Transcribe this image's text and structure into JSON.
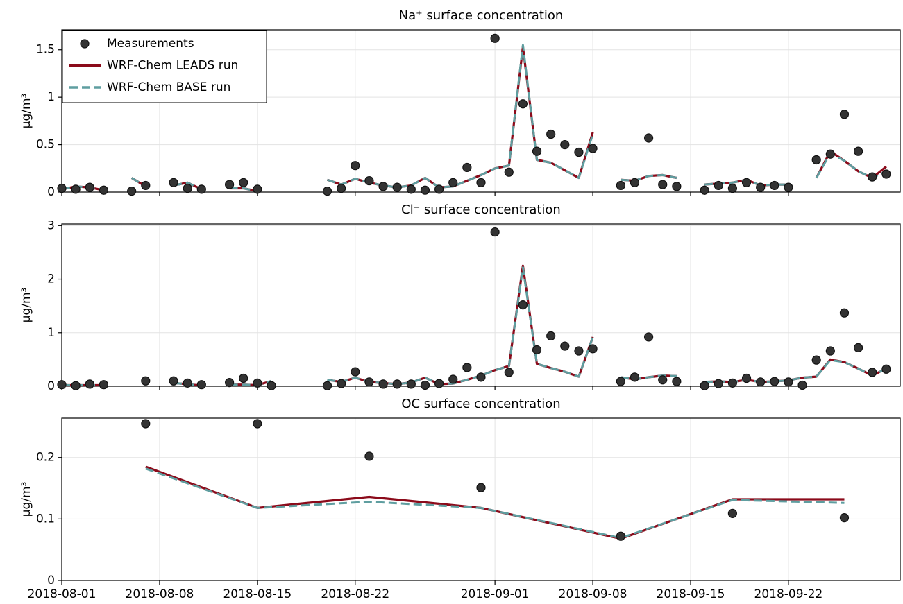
{
  "chart_data": [
    {
      "type": "line",
      "title": "Na⁺ surface concentration",
      "ylabel": "µg/m³",
      "xlim": [
        "2018-08-01",
        "2018-09-30"
      ],
      "ylim": [
        0,
        1.71
      ],
      "yticks": [
        0,
        0.5,
        1,
        1.5
      ],
      "grid": true,
      "legend": "upper left",
      "x": [
        "2018-08-01",
        "2018-08-02",
        "2018-08-03",
        "2018-08-04",
        "2018-08-05",
        "2018-08-06",
        "2018-08-07",
        "2018-08-08",
        "2018-08-09",
        "2018-08-10",
        "2018-08-11",
        "2018-08-12",
        "2018-08-13",
        "2018-08-14",
        "2018-08-15",
        "2018-08-16",
        "2018-08-17",
        "2018-08-18",
        "2018-08-19",
        "2018-08-20",
        "2018-08-21",
        "2018-08-22",
        "2018-08-23",
        "2018-08-24",
        "2018-08-25",
        "2018-08-26",
        "2018-08-27",
        "2018-08-28",
        "2018-08-29",
        "2018-08-30",
        "2018-08-31",
        "2018-09-01",
        "2018-09-02",
        "2018-09-03",
        "2018-09-04",
        "2018-09-05",
        "2018-09-06",
        "2018-09-07",
        "2018-09-08",
        "2018-09-09",
        "2018-09-10",
        "2018-09-11",
        "2018-09-12",
        "2018-09-13",
        "2018-09-14",
        "2018-09-15",
        "2018-09-16",
        "2018-09-17",
        "2018-09-18",
        "2018-09-19",
        "2018-09-20",
        "2018-09-21",
        "2018-09-22",
        "2018-09-23",
        "2018-09-24",
        "2018-09-25",
        "2018-09-26",
        "2018-09-27",
        "2018-09-28",
        "2018-09-29"
      ],
      "series": [
        {
          "name": "Measurements",
          "type": "scatter",
          "color": "#333333",
          "values": [
            0.04,
            0.03,
            0.05,
            0.02,
            null,
            0.01,
            0.07,
            null,
            0.1,
            0.04,
            0.03,
            null,
            0.08,
            0.1,
            0.03,
            null,
            null,
            null,
            null,
            0.01,
            0.04,
            0.28,
            0.12,
            0.06,
            0.05,
            0.03,
            0.02,
            0.03,
            0.1,
            0.26,
            0.1,
            1.62,
            0.21,
            0.93,
            0.43,
            0.61,
            0.5,
            0.42,
            0.46,
            null,
            0.07,
            0.1,
            0.57,
            0.08,
            0.06,
            null,
            0.02,
            0.07,
            0.04,
            0.1,
            0.05,
            0.07,
            0.05,
            null,
            0.34,
            0.4,
            0.82,
            0.43,
            0.16,
            0.19
          ]
        },
        {
          "name": "WRF-Chem LEADS run",
          "type": "line",
          "linestyle": "solid",
          "color": "#8b0a1a",
          "values": [
            0.03,
            0.06,
            0.05,
            0.02,
            null,
            0.15,
            0.06,
            null,
            0.07,
            0.1,
            0.03,
            null,
            0.04,
            0.04,
            0.01,
            null,
            null,
            null,
            null,
            0.13,
            0.08,
            0.14,
            0.1,
            0.07,
            0.05,
            0.07,
            0.15,
            0.05,
            0.06,
            0.12,
            0.18,
            0.25,
            0.28,
            1.53,
            0.34,
            0.31,
            0.23,
            0.15,
            0.63,
            null,
            0.13,
            0.12,
            0.17,
            0.18,
            0.15,
            null,
            0.08,
            0.09,
            0.1,
            0.13,
            0.07,
            0.08,
            0.08,
            null,
            0.15,
            0.43,
            0.33,
            0.22,
            0.15,
            0.27
          ]
        },
        {
          "name": "WRF-Chem BASE run",
          "type": "line",
          "linestyle": "dashed",
          "color": "#5f9ea0",
          "values": [
            0.03,
            0.06,
            0.05,
            0.02,
            null,
            0.15,
            0.06,
            null,
            0.07,
            0.1,
            0.03,
            null,
            0.04,
            0.04,
            0.01,
            null,
            null,
            null,
            null,
            0.13,
            0.08,
            0.14,
            0.1,
            0.07,
            0.05,
            0.07,
            0.15,
            0.05,
            0.06,
            0.12,
            0.18,
            0.25,
            0.28,
            1.55,
            0.34,
            0.31,
            0.23,
            0.15,
            0.61,
            null,
            0.13,
            0.12,
            0.17,
            0.18,
            0.15,
            null,
            0.08,
            0.09,
            0.1,
            0.13,
            0.07,
            0.08,
            0.08,
            null,
            0.15,
            0.41,
            0.33,
            0.22,
            0.15,
            0.22
          ]
        }
      ]
    },
    {
      "type": "line",
      "title": "Cl⁻ surface concentration",
      "ylabel": "µg/m³",
      "xlim": [
        "2018-08-01",
        "2018-09-30"
      ],
      "ylim": [
        0,
        3.03
      ],
      "yticks": [
        0,
        1,
        2,
        3
      ],
      "grid": true,
      "x": [
        "2018-08-01",
        "2018-08-02",
        "2018-08-03",
        "2018-08-04",
        "2018-08-05",
        "2018-08-06",
        "2018-08-07",
        "2018-08-08",
        "2018-08-09",
        "2018-08-10",
        "2018-08-11",
        "2018-08-12",
        "2018-08-13",
        "2018-08-14",
        "2018-08-15",
        "2018-08-16",
        "2018-08-17",
        "2018-08-18",
        "2018-08-19",
        "2018-08-20",
        "2018-08-21",
        "2018-08-22",
        "2018-08-23",
        "2018-08-24",
        "2018-08-25",
        "2018-08-26",
        "2018-08-27",
        "2018-08-28",
        "2018-08-29",
        "2018-08-30",
        "2018-08-31",
        "2018-09-01",
        "2018-09-02",
        "2018-09-03",
        "2018-09-04",
        "2018-09-05",
        "2018-09-06",
        "2018-09-07",
        "2018-09-08",
        "2018-09-09",
        "2018-09-10",
        "2018-09-11",
        "2018-09-12",
        "2018-09-13",
        "2018-09-14",
        "2018-09-15",
        "2018-09-16",
        "2018-09-17",
        "2018-09-18",
        "2018-09-19",
        "2018-09-20",
        "2018-09-21",
        "2018-09-22",
        "2018-09-23",
        "2018-09-24",
        "2018-09-25",
        "2018-09-26",
        "2018-09-27",
        "2018-09-28",
        "2018-09-29"
      ],
      "series": [
        {
          "name": "Measurements",
          "type": "scatter",
          "color": "#333333",
          "values": [
            0.03,
            0.01,
            0.04,
            0.03,
            null,
            null,
            0.1,
            null,
            0.1,
            0.06,
            0.03,
            null,
            0.07,
            0.15,
            0.06,
            0.01,
            null,
            null,
            null,
            0.01,
            0.05,
            0.27,
            0.08,
            0.04,
            0.04,
            0.04,
            0.02,
            0.05,
            0.13,
            0.35,
            0.17,
            2.88,
            0.26,
            1.52,
            0.68,
            0.94,
            0.75,
            0.66,
            0.7,
            null,
            0.09,
            0.17,
            0.92,
            0.12,
            0.09,
            null,
            0.01,
            0.05,
            0.06,
            0.15,
            0.08,
            0.09,
            0.08,
            0.02,
            0.49,
            0.66,
            1.37,
            0.72,
            0.26,
            0.32
          ]
        },
        {
          "name": "WRF-Chem LEADS run",
          "type": "line",
          "linestyle": "solid",
          "color": "#8b0a1a",
          "values": [
            0.02,
            0.02,
            0.02,
            0.02,
            null,
            null,
            null,
            null,
            0.06,
            0.04,
            0.01,
            null,
            0.03,
            0.03,
            0.02,
            0.1,
            null,
            null,
            null,
            0.12,
            0.08,
            0.16,
            0.08,
            0.06,
            0.04,
            0.07,
            0.16,
            0.04,
            0.05,
            0.12,
            0.2,
            0.3,
            0.38,
            2.25,
            0.42,
            0.34,
            0.27,
            0.18,
            0.92,
            null,
            0.17,
            0.13,
            0.17,
            0.2,
            0.19,
            null,
            0.08,
            0.09,
            0.08,
            0.12,
            0.08,
            0.09,
            0.11,
            0.16,
            0.18,
            0.5,
            0.45,
            0.33,
            0.2,
            0.33
          ]
        },
        {
          "name": "WRF-Chem BASE run",
          "type": "line",
          "linestyle": "dashed",
          "color": "#5f9ea0",
          "values": [
            0.02,
            0.02,
            0.02,
            0.02,
            null,
            null,
            null,
            null,
            0.06,
            0.04,
            0.01,
            null,
            0.03,
            0.03,
            0.02,
            0.1,
            null,
            null,
            null,
            0.12,
            0.08,
            0.16,
            0.08,
            0.06,
            0.04,
            0.07,
            0.16,
            0.04,
            0.05,
            0.12,
            0.2,
            0.3,
            0.38,
            2.22,
            0.42,
            0.34,
            0.27,
            0.18,
            0.92,
            null,
            0.17,
            0.13,
            0.17,
            0.2,
            0.19,
            null,
            0.08,
            0.09,
            0.08,
            0.12,
            0.08,
            0.09,
            0.11,
            0.16,
            0.18,
            0.49,
            0.45,
            0.33,
            0.2,
            0.33
          ]
        }
      ]
    },
    {
      "type": "line",
      "title": "OC surface concentration",
      "ylabel": "µg/m³",
      "xlim": [
        "2018-08-01",
        "2018-09-30"
      ],
      "xticks": [
        "2018-08-01",
        "2018-08-08",
        "2018-08-15",
        "2018-08-22",
        "2018-09-01",
        "2018-09-08",
        "2018-09-15",
        "2018-09-22"
      ],
      "ylim": [
        0,
        0.264
      ],
      "yticks": [
        0,
        0.1,
        0.2
      ],
      "grid": true,
      "x": [
        "2018-08-07",
        "2018-08-15",
        "2018-08-23",
        "2018-08-31",
        "2018-09-10",
        "2018-09-18",
        "2018-09-26"
      ],
      "series": [
        {
          "name": "Measurements",
          "type": "scatter",
          "color": "#333333",
          "values": [
            0.255,
            0.255,
            0.202,
            0.151,
            0.072,
            0.109,
            0.102
          ]
        },
        {
          "name": "WRF-Chem LEADS run",
          "type": "line",
          "linestyle": "solid",
          "color": "#8b0a1a",
          "values": [
            0.185,
            0.118,
            0.136,
            0.118,
            0.068,
            0.132,
            0.132
          ]
        },
        {
          "name": "WRF-Chem BASE run",
          "type": "line",
          "linestyle": "dashed",
          "color": "#5f9ea0",
          "values": [
            0.182,
            0.118,
            0.128,
            0.118,
            0.069,
            0.131,
            0.126
          ]
        }
      ]
    }
  ]
}
